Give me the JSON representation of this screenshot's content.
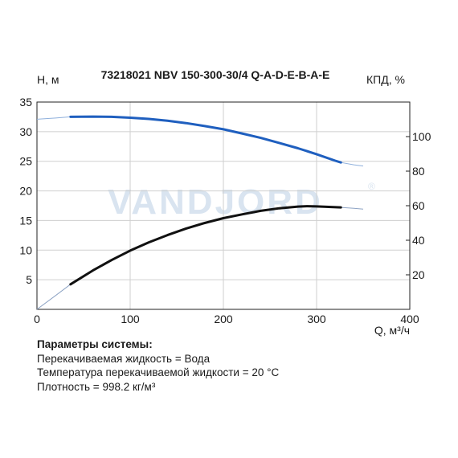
{
  "chart_data": {
    "type": "line",
    "title": "73218021 NBV 150-300-30/4 Q-A-D-E-B-A-E",
    "xlabel": "Q, м³/ч",
    "ylabel_left": "Н, м",
    "ylabel_right": "КПД, %",
    "watermark": "VANDJORD",
    "watermark_mark": "®",
    "x_ticks": [
      "0",
      "100",
      "200",
      "300",
      "400"
    ],
    "y_left_ticks": [
      "5",
      "10",
      "15",
      "20",
      "25",
      "30",
      "35"
    ],
    "y_right_ticks": [
      "20",
      "40",
      "60",
      "80",
      "100"
    ],
    "xlim": [
      0,
      400
    ],
    "ylim_left": [
      0,
      35
    ],
    "ylim_right": [
      0,
      120
    ],
    "grid": true,
    "series": [
      {
        "axis": "left",
        "color": "#1f5fbf",
        "x": [
          0,
          20,
          36,
          60,
          80,
          100,
          120,
          140,
          160,
          180,
          200,
          220,
          240,
          260,
          280,
          300,
          320,
          326,
          340,
          350
        ],
        "y": [
          32.1,
          32.3,
          32.5,
          32.55,
          32.5,
          32.35,
          32.15,
          31.85,
          31.45,
          30.95,
          30.4,
          29.7,
          28.95,
          28.1,
          27.2,
          26.2,
          25.1,
          24.8,
          24.4,
          24.2
        ]
      },
      {
        "axis": "right",
        "color": "#111111",
        "x": [
          0,
          20,
          36,
          60,
          80,
          100,
          120,
          140,
          160,
          180,
          200,
          220,
          240,
          260,
          280,
          290,
          300,
          326,
          340,
          350
        ],
        "y": [
          0,
          8,
          14.5,
          22.5,
          28.5,
          34,
          38.8,
          43,
          46.8,
          50,
          52.8,
          55,
          57,
          58.5,
          59.5,
          59.7,
          59.6,
          59,
          58.5,
          58
        ]
      }
    ],
    "bold_range": [
      36,
      326
    ]
  },
  "params": {
    "title": "Параметры системы:",
    "lines": [
      "Перекачиваемая жидкость = Вода",
      "Температура перекачиваемой жидкости = 20 °C",
      "Плотность = 998.2 кг/м³"
    ]
  }
}
